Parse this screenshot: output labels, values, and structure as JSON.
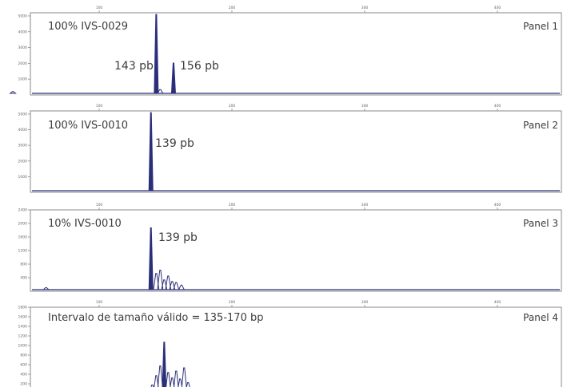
{
  "colors": {
    "trace": "#2b2f7a",
    "frame": "#8a8a8a",
    "tick": "#666666"
  },
  "chart_data": [
    {
      "type": "line",
      "sample_label": "100% IVS-0029",
      "panel_label": "Panel 1",
      "xlim": [
        0,
        500
      ],
      "x_ticks": [
        "100",
        "200",
        "300",
        "400"
      ],
      "ylim": [
        0,
        5200
      ],
      "y_ticks": [
        "1000",
        "2000",
        "3000",
        "4000",
        "5000"
      ],
      "peaks": [
        {
          "x": 143,
          "height": 5200,
          "label": "143 pb"
        },
        {
          "x": 156,
          "height": 2000,
          "label": "156 pb"
        }
      ],
      "minor_peaks": [
        {
          "x": 35,
          "height": 120
        },
        {
          "x": 146,
          "height": 250
        }
      ]
    },
    {
      "type": "line",
      "sample_label": "100% IVS-0010",
      "panel_label": "Panel 2",
      "xlim": [
        0,
        500
      ],
      "x_ticks": [
        "100",
        "200",
        "300",
        "400"
      ],
      "ylim": [
        0,
        5200
      ],
      "y_ticks": [
        "1000",
        "2000",
        "3000",
        "4000",
        "5000"
      ],
      "peaks": [
        {
          "x": 139,
          "height": 5200,
          "label": "139 pb"
        }
      ],
      "minor_peaks": []
    },
    {
      "type": "line",
      "sample_label": "10% IVS-0010",
      "panel_label": "Panel 3",
      "xlim": [
        0,
        500
      ],
      "x_ticks": [
        "100",
        "200",
        "300",
        "400"
      ],
      "ylim": [
        0,
        2400
      ],
      "y_ticks": [
        "400",
        "800",
        "1200",
        "1600",
        "2000",
        "2400"
      ],
      "peaks": [
        {
          "x": 139,
          "height": 1900,
          "label": "139 pb"
        }
      ],
      "minor_peaks": [
        {
          "x": 143,
          "height": 500
        },
        {
          "x": 146,
          "height": 600
        },
        {
          "x": 149,
          "height": 300
        },
        {
          "x": 152,
          "height": 420
        },
        {
          "x": 155,
          "height": 250
        },
        {
          "x": 158,
          "height": 220
        },
        {
          "x": 162,
          "height": 140
        },
        {
          "x": 20,
          "height": 70
        },
        {
          "x": 60,
          "height": 60
        }
      ]
    },
    {
      "type": "line",
      "sample_label": "Intervalo de tamaño válido = 135-170 bp",
      "panel_label": "Panel 4",
      "xlim": [
        0,
        500
      ],
      "x_ticks": [
        "100",
        "200",
        "300",
        "400"
      ],
      "ylim": [
        0,
        1800
      ],
      "y_ticks": [
        "200",
        "400",
        "600",
        "800",
        "1000",
        "1200",
        "1400",
        "1600",
        "1800"
      ],
      "peaks": [
        {
          "x": 149,
          "height": 1080,
          "label": ""
        }
      ],
      "minor_peaks": [
        {
          "x": 143,
          "height": 350
        },
        {
          "x": 146,
          "height": 560
        },
        {
          "x": 152,
          "height": 420
        },
        {
          "x": 155,
          "height": 300
        },
        {
          "x": 158,
          "height": 450
        },
        {
          "x": 161,
          "height": 280
        },
        {
          "x": 164,
          "height": 520
        },
        {
          "x": 167,
          "height": 200
        },
        {
          "x": 140,
          "height": 150
        }
      ]
    }
  ]
}
